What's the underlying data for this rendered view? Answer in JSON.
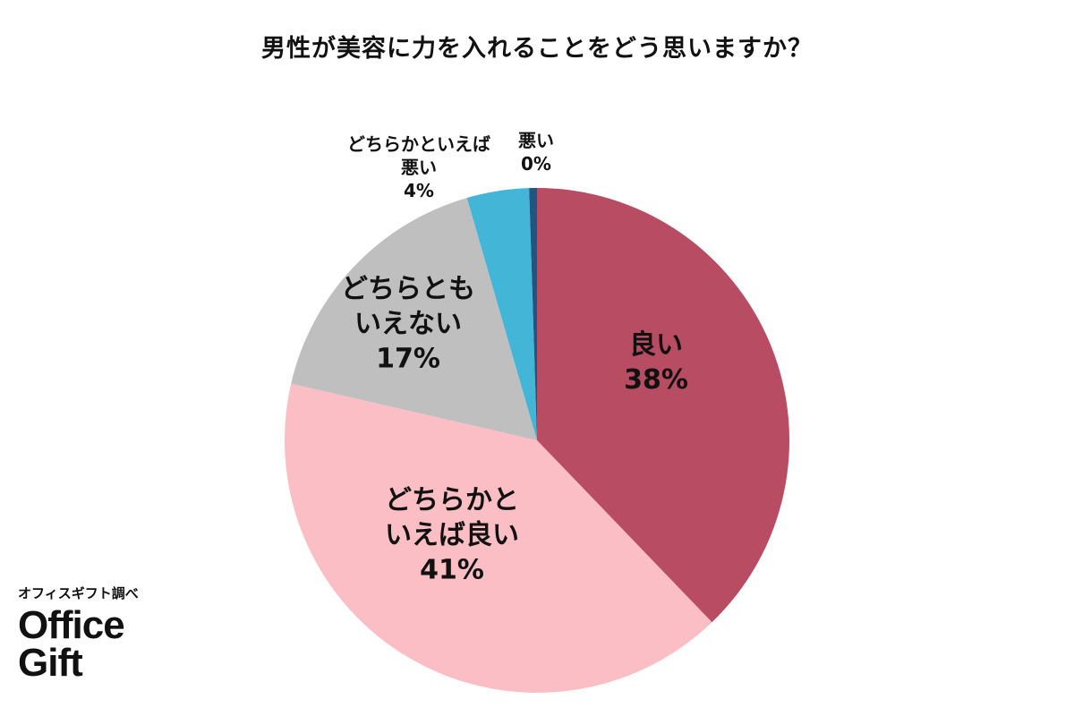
{
  "chart_data": {
    "type": "pie",
    "title": "男性が美容に力を入れることをどう思いますか？",
    "slices": [
      {
        "lines": [
          "良い"
        ],
        "percent_label": "38%",
        "value": 38,
        "color": "#b84c63"
      },
      {
        "lines": [
          "どちらかと",
          "いえば良い"
        ],
        "percent_label": "41%",
        "value": 41,
        "color": "#fbbec4"
      },
      {
        "lines": [
          "どちらとも",
          "いえない"
        ],
        "percent_label": "17%",
        "value": 17,
        "color": "#bfbfbf"
      },
      {
        "lines": [
          "どちらかといえば",
          "悪い"
        ],
        "percent_label": "4%",
        "value": 4,
        "color": "#43b6d8"
      },
      {
        "lines": [
          "悪い"
        ],
        "percent_label": "0%",
        "value": 0.5,
        "color": "#1f5580"
      }
    ]
  },
  "source_note": "オフィスギフト調べ",
  "logo": {
    "line1": "Office",
    "line2": "Gift"
  }
}
